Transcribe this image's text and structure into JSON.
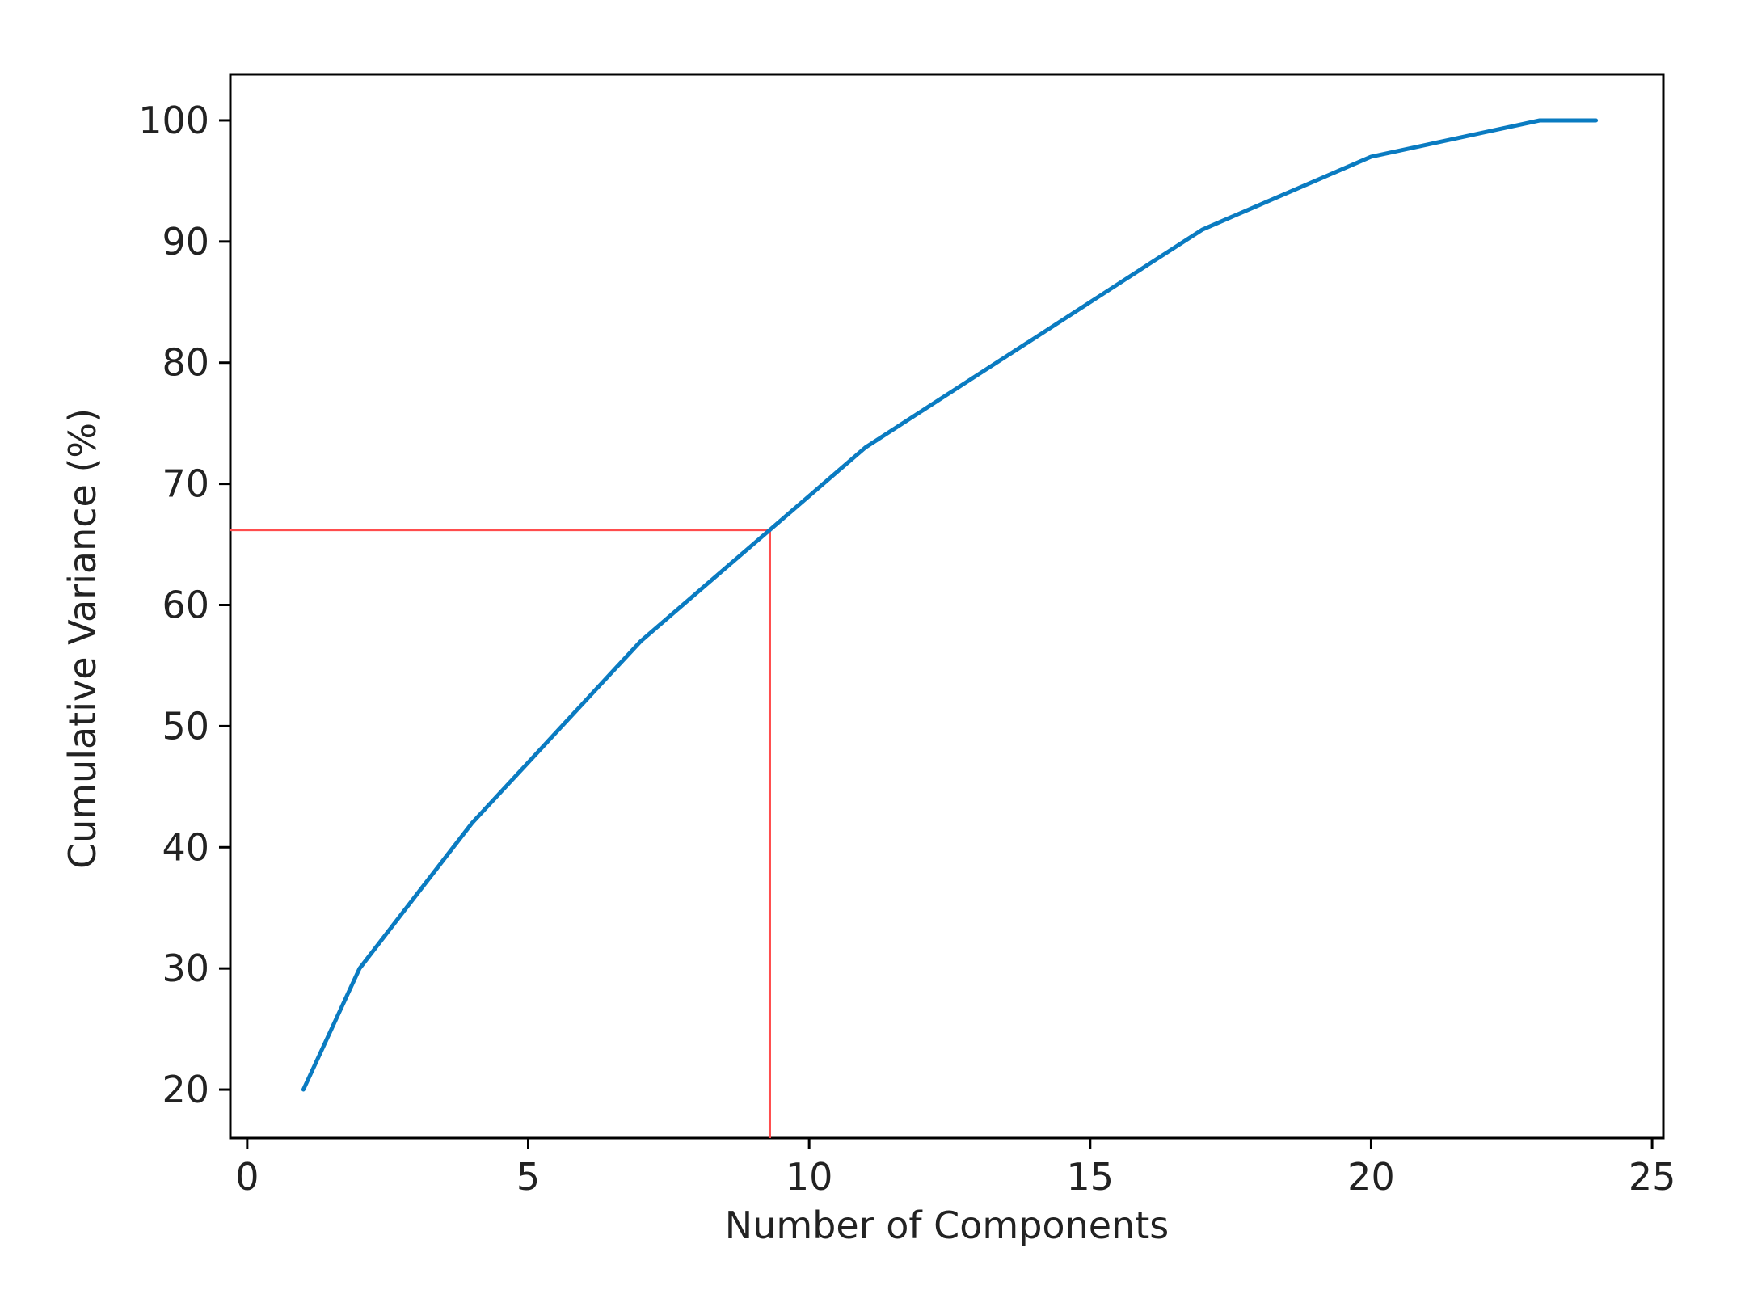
{
  "chart_data": {
    "type": "line",
    "title": "",
    "xlabel": "Number of Components",
    "ylabel": "Cumulative Variance (%)",
    "xlim": [
      -0.3,
      25.2
    ],
    "ylim": [
      16,
      103.8
    ],
    "x_ticks": [
      0,
      5,
      10,
      15,
      20,
      25
    ],
    "y_ticks": [
      20,
      30,
      40,
      50,
      60,
      70,
      80,
      90,
      100
    ],
    "x_tick_labels": [
      "0",
      "5",
      "10",
      "15",
      "20",
      "25"
    ],
    "y_tick_labels": [
      "20",
      "30",
      "40",
      "50",
      "60",
      "70",
      "80",
      "90",
      "100"
    ],
    "grid": false,
    "legend": "none",
    "series": [
      {
        "color": "#0a7bc1",
        "x": [
          1,
          2,
          3,
          4,
          5,
          6,
          7,
          8,
          9,
          10,
          11,
          12,
          13,
          14,
          15,
          16,
          17,
          18,
          19,
          20,
          21,
          22,
          23,
          24
        ],
        "y": [
          20,
          30,
          36,
          42,
          47,
          52,
          57,
          61,
          65,
          69,
          73,
          76,
          79,
          82,
          85,
          88,
          91,
          93,
          95,
          97,
          98,
          99,
          100,
          100
        ]
      }
    ],
    "reference_lines": {
      "color": "#ff4d4d",
      "x": 9.3,
      "y": 66.2
    }
  }
}
